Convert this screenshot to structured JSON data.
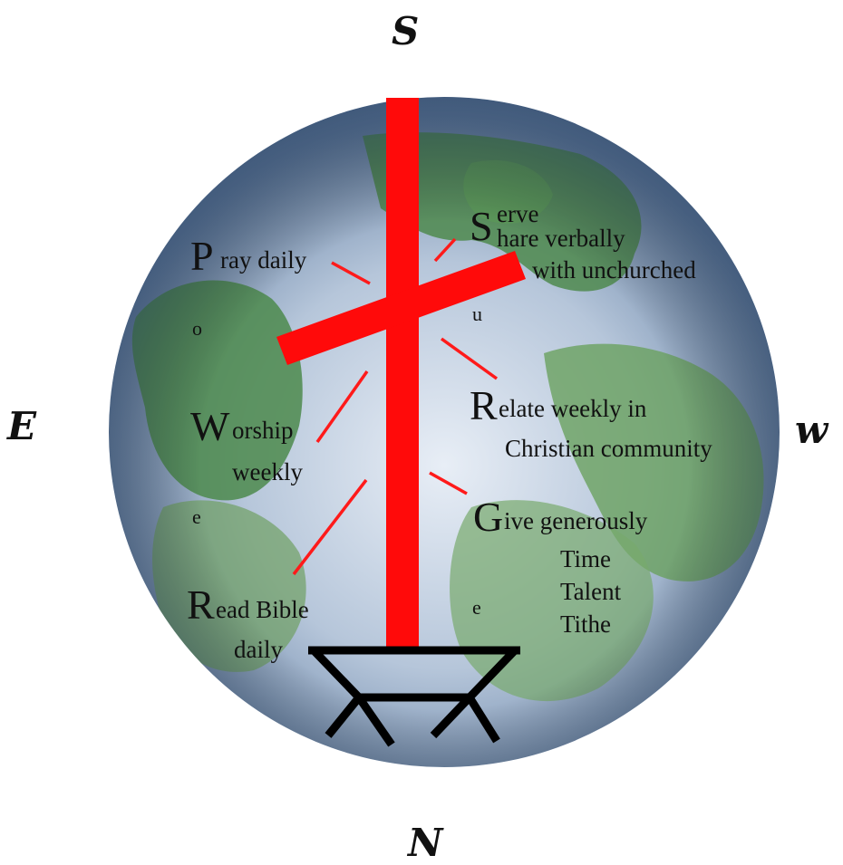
{
  "compass": {
    "top": "S",
    "left": "E",
    "right": "w",
    "bottom": "N"
  },
  "items": {
    "pray": {
      "initial": "P",
      "rest": "ray daily"
    },
    "worship": {
      "initial": "W",
      "rest": "orship",
      "line2": "weekly"
    },
    "read": {
      "initial": "R",
      "rest": "ead Bible",
      "line2": "daily"
    },
    "serve": {
      "initial": "S",
      "rest_top": "erve",
      "rest": "hare verbally",
      "line2": "with unchurched"
    },
    "relate": {
      "initial": "R",
      "rest": "elate weekly in",
      "line2": "Christian community"
    },
    "give": {
      "initial": "G",
      "rest": "ive generously",
      "sub": [
        "Time",
        "Talent",
        "Tithe"
      ]
    }
  },
  "letters": {
    "o": "o",
    "e_left": "e",
    "u": "u",
    "e_right": "e"
  },
  "colors": {
    "cross": "#ff0a0a",
    "manger": "#000000",
    "ocean": "#6f8fb3",
    "land": "#5f9457"
  }
}
